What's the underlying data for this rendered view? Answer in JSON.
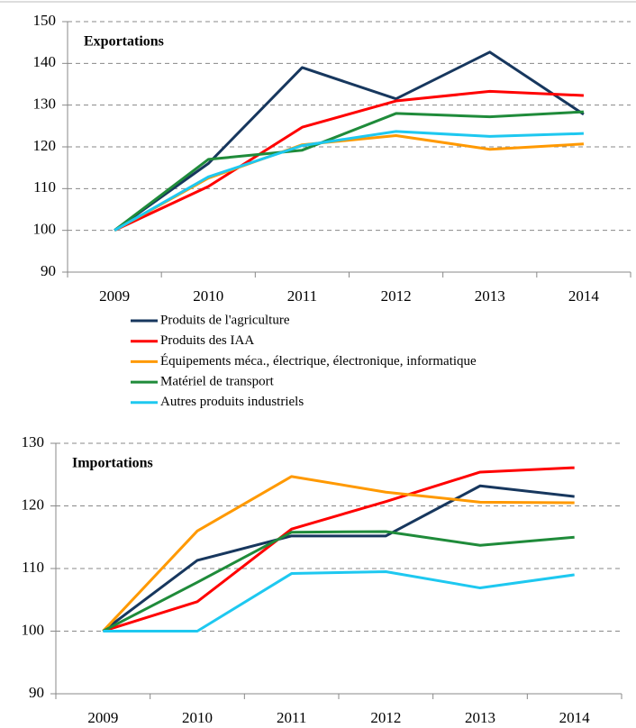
{
  "chart_data": [
    {
      "type": "line",
      "title": "Exportations",
      "categories": [
        "2009",
        "2010",
        "2011",
        "2012",
        "2013",
        "2014"
      ],
      "ylim": [
        90,
        150
      ],
      "yticks": [
        90,
        100,
        110,
        120,
        130,
        140,
        150
      ],
      "grid": true,
      "series": [
        {
          "name": "Produits de l'agriculture",
          "color": "#17375e",
          "values": [
            100,
            116,
            139,
            131.5,
            142.7,
            127.8
          ]
        },
        {
          "name": "Produits des IAA",
          "color": "#ff0000",
          "values": [
            100,
            110.5,
            124.7,
            131,
            133.3,
            132.3
          ]
        },
        {
          "name": "Équipements méca., électrique, électronique, informatique",
          "color": "#ff9900",
          "values": [
            100,
            112.5,
            120.5,
            122.7,
            119.4,
            120.7
          ]
        },
        {
          "name": "Matériel de transport",
          "color": "#1f8b3a",
          "values": [
            100,
            117,
            119.2,
            128,
            127.2,
            128.4
          ]
        },
        {
          "name": "Autres produits industriels",
          "color": "#1ec8f0",
          "values": [
            100,
            112.8,
            120.3,
            123.7,
            122.5,
            123.2
          ]
        }
      ]
    },
    {
      "type": "line",
      "title": "Importations",
      "categories": [
        "2009",
        "2010",
        "2011",
        "2012",
        "2013",
        "2014"
      ],
      "ylim": [
        90,
        130
      ],
      "yticks": [
        90,
        100,
        110,
        120,
        130
      ],
      "grid": true,
      "series": [
        {
          "color": "#17375e",
          "values": [
            100,
            111.3,
            115.2,
            115.2,
            123.2,
            121.5
          ]
        },
        {
          "color": "#ff0000",
          "values": [
            100,
            104.7,
            116.3,
            120.7,
            125.4,
            126.1
          ]
        },
        {
          "color": "#ff9900",
          "values": [
            100,
            116,
            124.7,
            122.2,
            120.6,
            120.5
          ]
        },
        {
          "color": "#1f8b3a",
          "values": [
            100,
            107.8,
            115.8,
            115.9,
            113.7,
            115
          ]
        },
        {
          "color": "#1ec8f0",
          "values": [
            100,
            100,
            109.2,
            109.5,
            106.9,
            109
          ]
        }
      ]
    }
  ]
}
